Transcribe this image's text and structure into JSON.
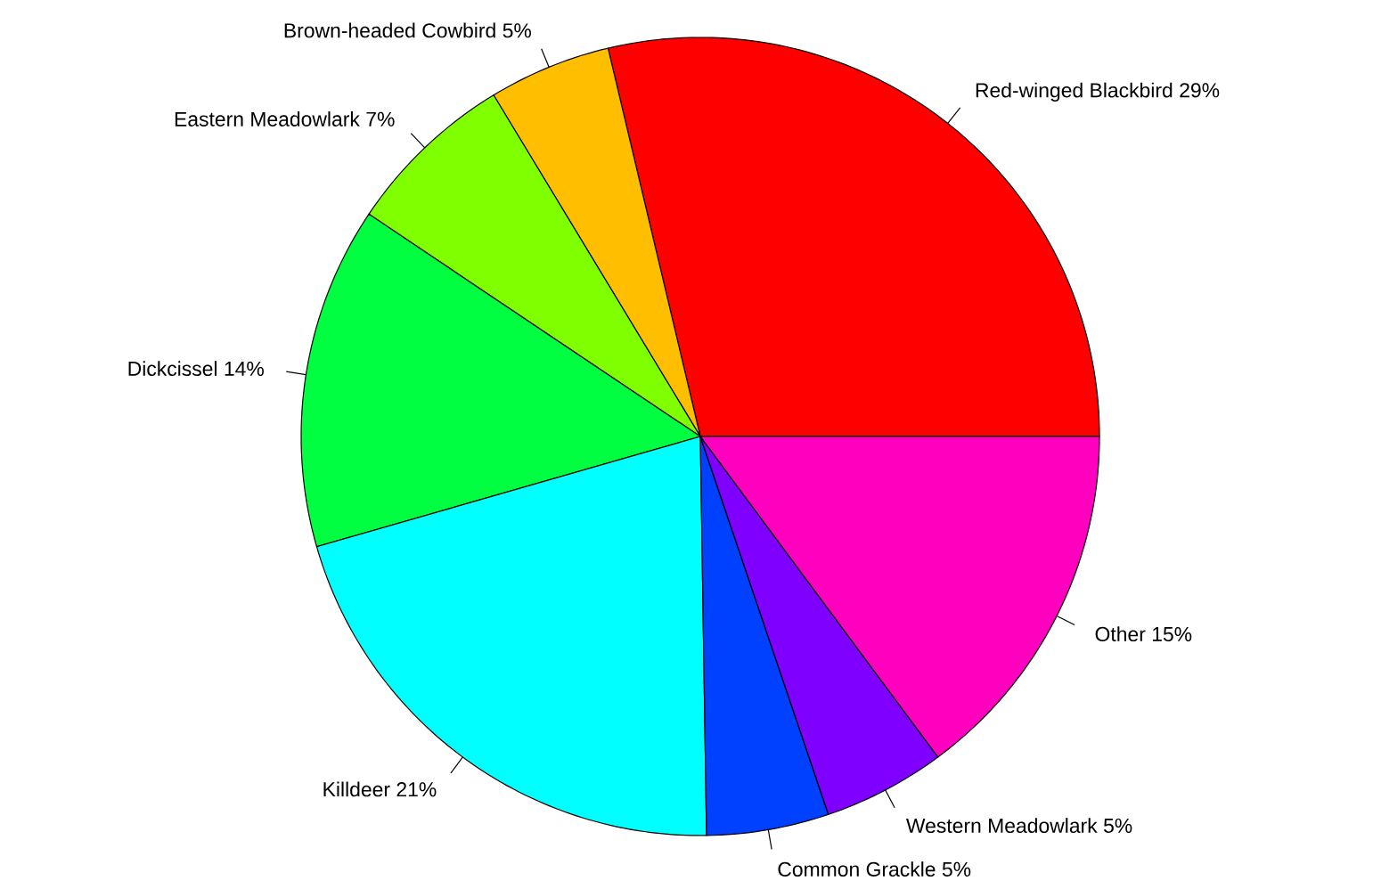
{
  "chart_data": {
    "type": "pie",
    "categories": [
      "Red-winged Blackbird",
      "Brown-headed Cowbird",
      "Eastern Meadowlark",
      "Dickcissel",
      "Killdeer",
      "Common Grackle",
      "Western Meadowlark",
      "Other"
    ],
    "values": [
      29,
      5,
      7,
      14,
      21,
      5,
      5,
      15
    ],
    "value_labels": [
      "29%",
      "5%",
      "7%",
      "14%",
      "21%",
      "5%",
      "5%",
      "15%"
    ],
    "colors": [
      "#ff0000",
      "#ffbf00",
      "#80ff00",
      "#00ff40",
      "#00ffff",
      "#0040ff",
      "#8000ff",
      "#ff00bf"
    ]
  }
}
